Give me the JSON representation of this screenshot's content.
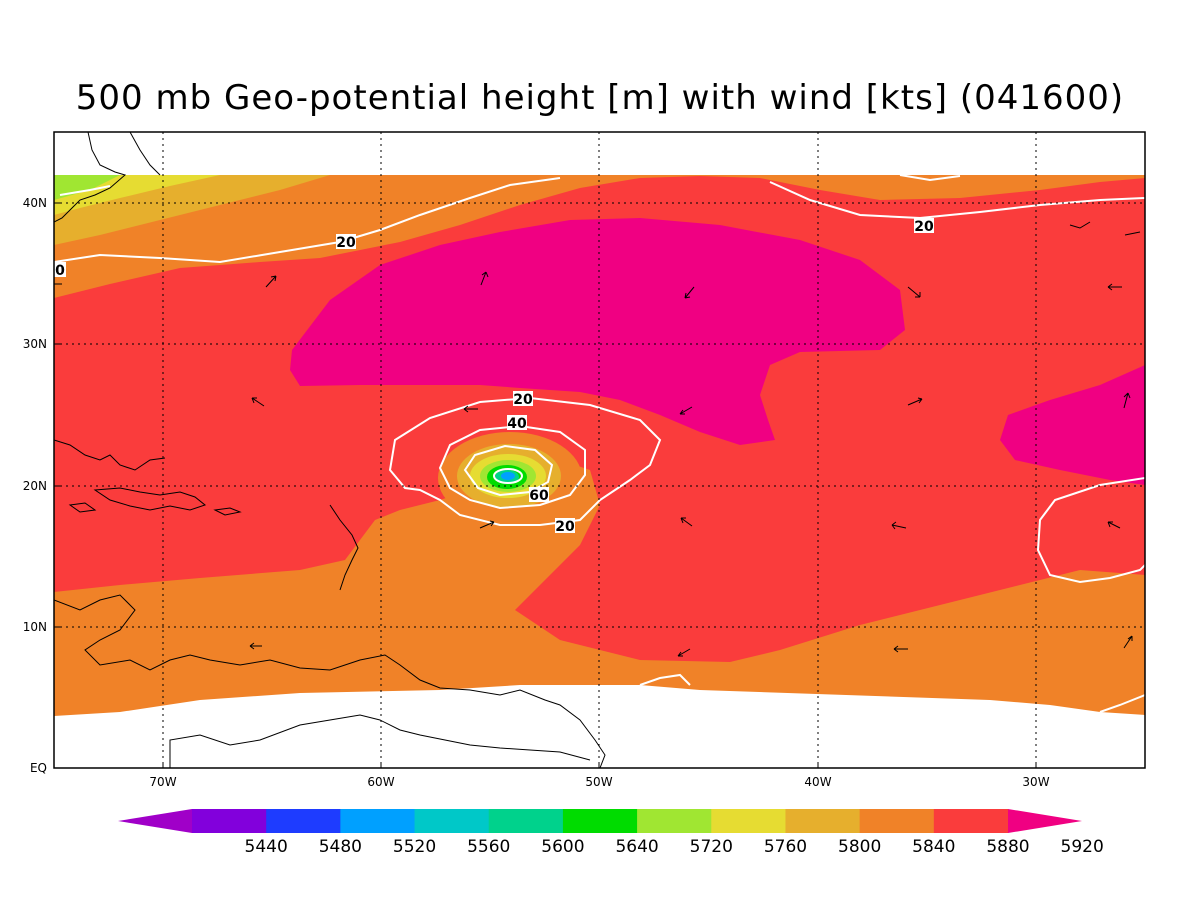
{
  "title": "500 mb Geo-potential height [m] with wind [kts] (041600)",
  "lon_ticks": [
    "70W",
    "60W",
    "50W",
    "40W",
    "30W"
  ],
  "lat_ticks": [
    "40N",
    "30N",
    "20N",
    "10N",
    "EQ"
  ],
  "contour_labels": [
    "20",
    "20",
    "0",
    "20",
    "40",
    "60",
    "20"
  ],
  "colorbar": {
    "values": [
      "5440",
      "5480",
      "5520",
      "5560",
      "5600",
      "5640",
      "5720",
      "5760",
      "5800",
      "5840",
      "5880",
      "5920"
    ],
    "colors": [
      "#a000c8",
      "#8200dc",
      "#1e3cff",
      "#00a0ff",
      "#00c8c8",
      "#00d28c",
      "#00dc00",
      "#a0e632",
      "#e6dc32",
      "#e6af2d",
      "#f08228",
      "#fa3c3c",
      "#f00082"
    ]
  },
  "colors": {
    "h5920": "#f00082",
    "h5880": "#fa3c3c",
    "h5840": "#f08228",
    "h5800": "#e6af2d",
    "h5760": "#e6dc32",
    "h5720": "#a0e632",
    "h5640": "#00dc00"
  }
}
